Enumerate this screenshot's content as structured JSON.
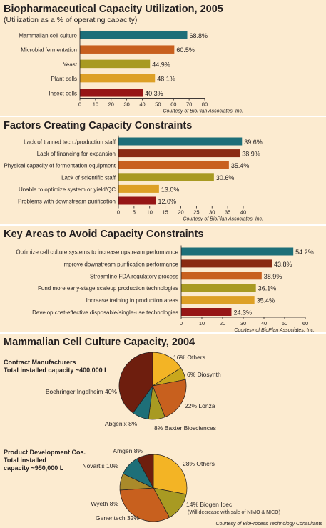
{
  "chart_data": [
    {
      "type": "bar",
      "orientation": "horizontal",
      "title": "Biopharmaceutical Capacity Utilization, 2005",
      "subtitle": "(Utilization as a % of operating capacity)",
      "credit": "Courtesy of BioPlan Associates, Inc.",
      "categories": [
        "Mammalian cell culture",
        "Microbial fermentation",
        "Yeast",
        "Plant cells",
        "Insect cells"
      ],
      "values": [
        68.8,
        60.5,
        44.9,
        48.1,
        40.3
      ],
      "value_labels": [
        "68.8%",
        "60.5%",
        "44.9%",
        "48.1%",
        "40.3%"
      ],
      "colors": [
        "#1e6f78",
        "#c8601e",
        "#a89a22",
        "#dda026",
        "#961616"
      ],
      "xlim": [
        0,
        80
      ],
      "ticks": [
        "0",
        "10",
        "20",
        "30",
        "40",
        "50",
        "60",
        "70",
        "80"
      ]
    },
    {
      "type": "bar",
      "orientation": "horizontal",
      "title": "Factors Creating Capacity Constraints",
      "credit": "Courtesy of BioPlan Associates, Inc.",
      "categories": [
        "Lack of trained tech./production staff",
        "Lack of financing for expansion",
        "Physical capacity of fermentation equipment",
        "Lack of scientific staff",
        "Unable to optimize system or yield/QC",
        "Problems with downstream purification"
      ],
      "values": [
        39.6,
        38.9,
        35.4,
        30.6,
        13.0,
        12.0
      ],
      "value_labels": [
        "39.6%",
        "38.9%",
        "35.4%",
        "30.6%",
        "13.0%",
        "12.0%"
      ],
      "colors": [
        "#1e6f78",
        "#8a2a12",
        "#c8601e",
        "#a89a22",
        "#dda026",
        "#961616"
      ],
      "xlim": [
        0,
        40
      ],
      "ticks": [
        "0",
        "5",
        "10",
        "15",
        "20",
        "25",
        "30",
        "35",
        "40"
      ]
    },
    {
      "type": "bar",
      "orientation": "horizontal",
      "title": "Key Areas to Avoid Capacity Constraints",
      "credit": "Courtesy of BioPlan Associates, Inc.",
      "categories": [
        "Optimize cell culture systems to increase upstream performance",
        "Improve downstream purification performance",
        "Streamline FDA regulatory process",
        "Fund more early-stage scaleup production technologies",
        "Increase training in production areas",
        "Develop cost-effective disposable/single-use technologies"
      ],
      "values": [
        54.2,
        43.8,
        38.9,
        36.1,
        35.4,
        24.3
      ],
      "value_labels": [
        "54.2%",
        "43.8%",
        "38.9%",
        "36.1%",
        "35.4%",
        "24.3%"
      ],
      "colors": [
        "#1e6f78",
        "#8a2a12",
        "#c8601e",
        "#a89a22",
        "#dda026",
        "#961616"
      ],
      "xlim": [
        0,
        60
      ],
      "ticks": [
        "0",
        "10",
        "20",
        "30",
        "40",
        "50",
        "60"
      ]
    },
    {
      "type": "pie",
      "title": "Mammalian Cell Culture Capacity, 2004",
      "subtitle_lines": [
        "Contract Manufacturers",
        "Total installed capacity ~400,000 L"
      ],
      "slices": [
        {
          "label": "Others",
          "value": 16,
          "value_label": "16%",
          "color": "#f3b425"
        },
        {
          "label": "Diosynth",
          "value": 6,
          "value_label": "6%",
          "color": "#c9a71c"
        },
        {
          "label": "Lonza",
          "value": 22,
          "value_label": "22%",
          "color": "#c8601e"
        },
        {
          "label": "Baxter Biosciences",
          "value": 8,
          "value_label": "8%",
          "color": "#a89a22"
        },
        {
          "label": "Abgenix",
          "value": 8,
          "value_label": "8%",
          "color": "#1e6f78"
        },
        {
          "label": "Boehringer Ingelheim",
          "value": 40,
          "value_label": "40%",
          "color": "#6e1e0e"
        }
      ]
    },
    {
      "type": "pie",
      "subtitle_lines": [
        "Product Development Cos.",
        "Total installed",
        "capacity ~950,000 L"
      ],
      "credit": "Courtesy of BioProcess Technology Consultants",
      "slices": [
        {
          "label": "Others",
          "value": 28,
          "value_label": "28%",
          "color": "#f3b425"
        },
        {
          "label": "Biogen Idec",
          "value": 14,
          "value_label": "14%",
          "color": "#a89a22",
          "note": "(Will decrease with sale of NIMO & NICO)"
        },
        {
          "label": "Genentech",
          "value": 32,
          "value_label": "32%",
          "color": "#c8601e"
        },
        {
          "label": "Wyeth",
          "value": 8,
          "value_label": "8%",
          "color": "#aa8a2a"
        },
        {
          "label": "Novartis",
          "value": 10,
          "value_label": "10%",
          "color": "#1e6f78"
        },
        {
          "label": "Amgen",
          "value": 8,
          "value_label": "8%",
          "color": "#6e1e0e"
        }
      ]
    }
  ]
}
